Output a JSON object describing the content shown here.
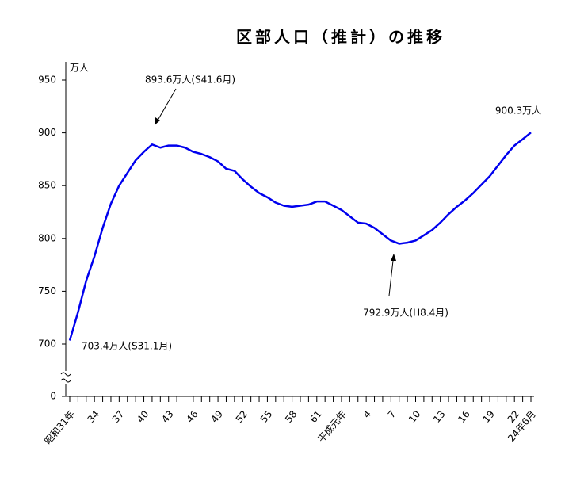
{
  "chart_data": {
    "type": "line",
    "title": "区部人口（推計）の推移",
    "y_unit": "万人",
    "categories": [
      "昭和31年",
      null,
      null,
      "34",
      null,
      null,
      "37",
      null,
      null,
      "40",
      null,
      null,
      "43",
      null,
      null,
      "46",
      null,
      null,
      "49",
      null,
      null,
      "52",
      null,
      null,
      "55",
      null,
      null,
      "58",
      null,
      null,
      "61",
      null,
      null,
      "平成元年",
      null,
      null,
      "4",
      null,
      null,
      "7",
      null,
      null,
      "10",
      null,
      null,
      "13",
      null,
      null,
      "16",
      null,
      null,
      "19",
      null,
      null,
      "22",
      null,
      "24年6月"
    ],
    "series": [
      {
        "name": "区部人口",
        "color": "#0000ee",
        "values": [
          703.4,
          730,
          760,
          783,
          810,
          833,
          850,
          862,
          874,
          882,
          889,
          886,
          888,
          888,
          886,
          882,
          880,
          877,
          873,
          866,
          864,
          856,
          849,
          843,
          839,
          834,
          831,
          830,
          831,
          832,
          835,
          835,
          831,
          827,
          821,
          815,
          814,
          810,
          804,
          798,
          795,
          796,
          798,
          803,
          808,
          815,
          823,
          830,
          836,
          843,
          851,
          859,
          869,
          879,
          888,
          894,
          900.3
        ]
      }
    ],
    "ylim": [
      700,
      950
    ],
    "yticks": [
      0,
      700,
      750,
      800,
      850,
      900,
      950
    ],
    "axis_break": true,
    "annotations": [
      "893.6万人(S41.6月)",
      "900.3万人",
      "792.9万人(H8.4月)",
      "703.4万人(S31.1月)"
    ]
  }
}
